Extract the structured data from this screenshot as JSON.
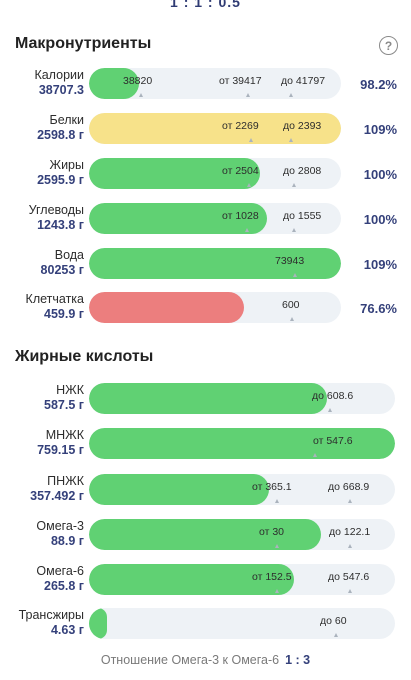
{
  "top_ratio": "1 : 1 : 0.5",
  "macros": {
    "title": "Макронутриенты",
    "help_icon": "question-circle-icon",
    "items": [
      {
        "name": "Калории",
        "value": "38707.3",
        "percent": "98.2%",
        "fill_fraction": 0.13,
        "color": "#60d173",
        "markers": [
          "38820",
          "от 39417",
          "до 41797"
        ]
      },
      {
        "name": "Белки",
        "value": "2598.8 г",
        "percent": "109%",
        "fill_fraction": 1.0,
        "color": "#f7e28a",
        "markers": [
          "от 2269",
          "до 2393"
        ]
      },
      {
        "name": "Жиры",
        "value": "2595.9 г",
        "percent": "100%",
        "fill_fraction": 0.68,
        "color": "#60d173",
        "markers": [
          "от 2504",
          "до 2808"
        ]
      },
      {
        "name": "Углеводы",
        "value": "1243.8 г",
        "percent": "100%",
        "fill_fraction": 0.71,
        "color": "#60d173",
        "markers": [
          "от 1028",
          "до 1555"
        ]
      },
      {
        "name": "Вода",
        "value": "80253 г",
        "percent": "109%",
        "fill_fraction": 1.0,
        "color": "#60d173",
        "markers": [
          "73943"
        ]
      },
      {
        "name": "Клетчатка",
        "value": "459.9 г",
        "percent": "76.6%",
        "fill_fraction": 0.61,
        "color": "#ec7e7e",
        "markers": [
          "600"
        ]
      }
    ]
  },
  "fatty": {
    "title": "Жирные кислоты",
    "items": [
      {
        "name": "НЖК",
        "value": "587.5 г",
        "fill_fraction": 0.78,
        "color": "#60d173",
        "markers": [
          "до 608.6"
        ]
      },
      {
        "name": "МНЖК",
        "value": "759.15 г",
        "fill_fraction": 1.0,
        "color": "#60d173",
        "markers": [
          "от 547.6"
        ]
      },
      {
        "name": "ПНЖК",
        "value": "357.492 г",
        "fill_fraction": 0.59,
        "color": "#60d173",
        "markers": [
          "от 365.1",
          "до 668.9"
        ]
      },
      {
        "name": "Омега-3",
        "value": "88.9 г",
        "fill_fraction": 0.76,
        "color": "#60d173",
        "markers": [
          "от 30",
          "до 122.1"
        ]
      },
      {
        "name": "Омега-6",
        "value": "265.8 г",
        "fill_fraction": 0.67,
        "color": "#60d173",
        "markers": [
          "от 152.5",
          "до 547.6"
        ]
      },
      {
        "name": "Трансжиры",
        "value": "4.63 г",
        "fill_fraction": 0.06,
        "color": "#60d173",
        "markers": [
          "до 60"
        ]
      }
    ]
  },
  "footer": {
    "label": "Отношение Омега-3 к Омега-6",
    "ratio": "1 : 3"
  }
}
